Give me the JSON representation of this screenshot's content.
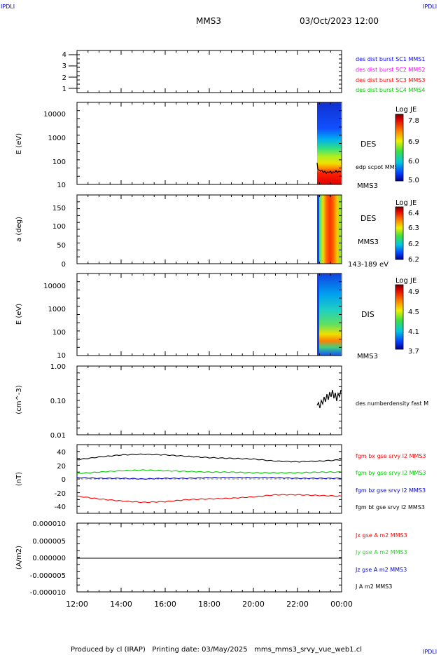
{
  "corner_label": "IPDLI",
  "header": {
    "title": "MMS3",
    "datetime": "03/Oct/2023 12:00"
  },
  "footer": {
    "text": "Produced by cl (IRAP)   Printing date: 03/May/2025   mms_mms3_srvy_vue_web1.cl"
  },
  "x_ticks": [
    "12:00",
    "14:00",
    "16:00",
    "18:00",
    "20:00",
    "22:00",
    "00:00"
  ],
  "panels": {
    "burst": {
      "ticks": [
        "4",
        "3",
        "2",
        "1"
      ],
      "legend": [
        {
          "text": "des dist burst SC1 MMS1",
          "color": "#0000ff"
        },
        {
          "text": "des dist burst SC2 MMS2",
          "color": "#ff00ff"
        },
        {
          "text": "des dist burst SC3 MMS3",
          "color": "#ff0000"
        },
        {
          "text": "des dist burst SC4 MMS4",
          "color": "#00cc00"
        }
      ]
    },
    "des_energy": {
      "ylabel": "E (eV)",
      "ticks": [
        "10000",
        "1000",
        "100",
        "10"
      ],
      "label": "DES",
      "sub_label": "MMS3",
      "overlay": "edp scpot MMS3",
      "colorbar": {
        "title": "Log JE",
        "ticks": [
          "7.8",
          "6.9",
          "6.0",
          "5.0"
        ]
      }
    },
    "des_pitch": {
      "ylabel": "a (deg)",
      "ticks": [
        "150",
        "100",
        "50",
        "0"
      ],
      "label": "DES",
      "sub_label": "MMS3",
      "range_label": "143-189 eV",
      "colorbar": {
        "title": "Log JE",
        "ticks": [
          "6.4",
          "6.3",
          "6.2",
          "6.2"
        ]
      }
    },
    "dis_energy": {
      "ylabel": "E (eV)",
      "ticks": [
        "10000",
        "1000",
        "100",
        "10"
      ],
      "label": "DIS",
      "sub_label": "MMS3",
      "colorbar": {
        "title": "Log JE",
        "ticks": [
          "4.9",
          "4.5",
          "4.1",
          "3.7"
        ]
      }
    },
    "density": {
      "ylabel": "(cm^-3)",
      "ticks": [
        "1.00",
        "0.10",
        "0.01"
      ],
      "legend": "des numberdensity fast M"
    },
    "fgm": {
      "ylabel": "(nT)",
      "ticks": [
        "40",
        "20",
        "0",
        "-20",
        "-40"
      ],
      "legend": [
        {
          "text": "fgm bx gse srvy l2 MMS3",
          "color": "#ff0000"
        },
        {
          "text": "fgm by gse srvy l2 MMS3",
          "color": "#00cc00"
        },
        {
          "text": "fgm bz gse srvy l2 MMS3",
          "color": "#0000cc"
        },
        {
          "text": "fgm bt gse srvy l2 MMS3",
          "color": "#000000"
        }
      ]
    },
    "current": {
      "ylabel": "(A/m2)",
      "ticks": [
        "0.000010",
        "0.000005",
        "0.000000",
        "-0.000005",
        "-0.000010"
      ],
      "legend": [
        {
          "text": "Jx gse A m2 MMS3",
          "color": "#ff0000"
        },
        {
          "text": "Jy gse A m2 MMS3",
          "color": "#33cc33"
        },
        {
          "text": "Jz gse A m2 MMS3",
          "color": "#0000cc"
        },
        {
          "text": "J A m2 MMS3",
          "color": "#000000"
        }
      ]
    }
  },
  "chart_data": [
    {
      "type": "line",
      "panel": "fgm",
      "x": [
        "12:00",
        "13:00",
        "14:00",
        "15:00",
        "16:00",
        "17:00",
        "18:00",
        "19:00",
        "20:00",
        "21:00",
        "22:00",
        "23:00",
        "00:00"
      ],
      "series": [
        {
          "name": "fgm bx gse srvy l2 MMS3",
          "color": "#ff0000",
          "values": [
            -25,
            -29,
            -32,
            -34,
            -33,
            -30,
            -29,
            -28,
            -26,
            -23,
            -23,
            -24,
            -25
          ]
        },
        {
          "name": "fgm by gse srvy l2 MMS3",
          "color": "#00cc00",
          "values": [
            8,
            10,
            12,
            13,
            12,
            11,
            10,
            10,
            9,
            9,
            9,
            10,
            10
          ]
        },
        {
          "name": "fgm bz gse srvy l2 MMS3",
          "color": "#0000cc",
          "values": [
            2,
            1,
            1,
            0,
            1,
            1,
            2,
            2,
            2,
            2,
            1,
            1,
            1
          ]
        },
        {
          "name": "fgm bt gse srvy l2 MMS3",
          "color": "#000000",
          "values": [
            28,
            32,
            35,
            36,
            35,
            33,
            31,
            30,
            29,
            26,
            25,
            26,
            28
          ]
        }
      ],
      "ylim": [
        -50,
        50
      ]
    },
    {
      "type": "line",
      "panel": "density",
      "scale": "log",
      "x": [
        "23:10",
        "23:20",
        "23:30",
        "23:40",
        "23:50",
        "00:00"
      ],
      "series": [
        {
          "name": "des numberdensity fast M",
          "color": "#000000",
          "values": [
            0.07,
            0.09,
            0.12,
            0.13,
            0.14,
            0.15
          ]
        }
      ],
      "ylim": [
        0.01,
        1.0
      ]
    },
    {
      "type": "line",
      "panel": "des_energy",
      "scale": "log",
      "x": [
        "23:00",
        "23:15",
        "23:30",
        "23:45",
        "00:00"
      ],
      "series": [
        {
          "name": "edp scpot MMS3",
          "color": "#000000",
          "values": [
            45,
            35,
            32,
            30,
            33
          ]
        }
      ],
      "ylim": [
        10,
        30000
      ]
    }
  ]
}
